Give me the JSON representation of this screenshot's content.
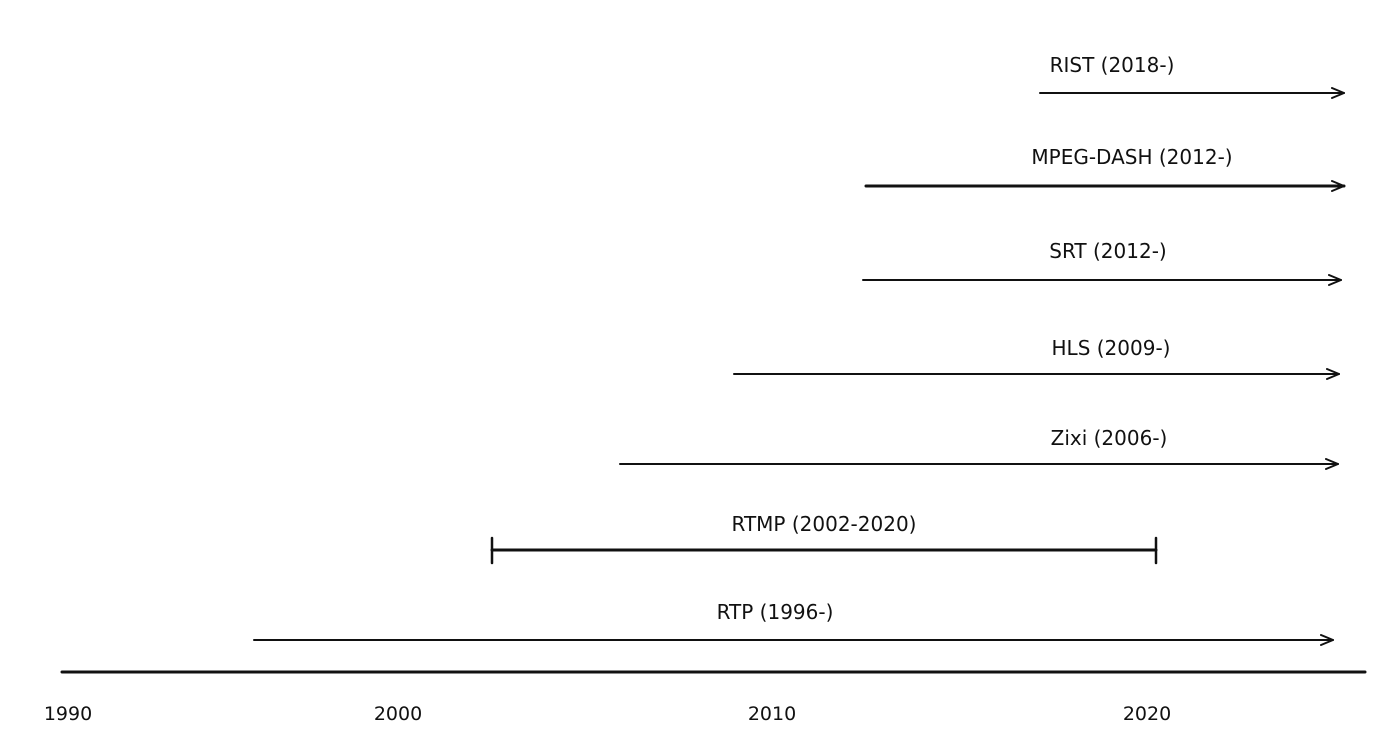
{
  "axis": {
    "ticks": [
      "1990",
      "2000",
      "2010",
      "2020"
    ]
  },
  "protocols": [
    {
      "label": "RIST (2018-)",
      "start": 2017.5,
      "end": null,
      "ongoing": true
    },
    {
      "label": "MPEG-DASH (2012-)",
      "start": 2012.5,
      "end": null,
      "ongoing": true
    },
    {
      "label": "SRT (2012-)",
      "start": 2012.4,
      "end": null,
      "ongoing": true
    },
    {
      "label": "HLS (2009-)",
      "start": 2009.0,
      "end": null,
      "ongoing": true
    },
    {
      "label": "Zixi (2006-)",
      "start": 2005.9,
      "end": null,
      "ongoing": true
    },
    {
      "label": "RTMP (2002-2020)",
      "start": 2002.5,
      "end": 2020.3,
      "ongoing": false
    },
    {
      "label": "RTP (1996-)",
      "start": 1995.9,
      "end": null,
      "ongoing": true
    }
  ],
  "colors": {
    "ink": "#111111",
    "background": "#ffffff"
  }
}
